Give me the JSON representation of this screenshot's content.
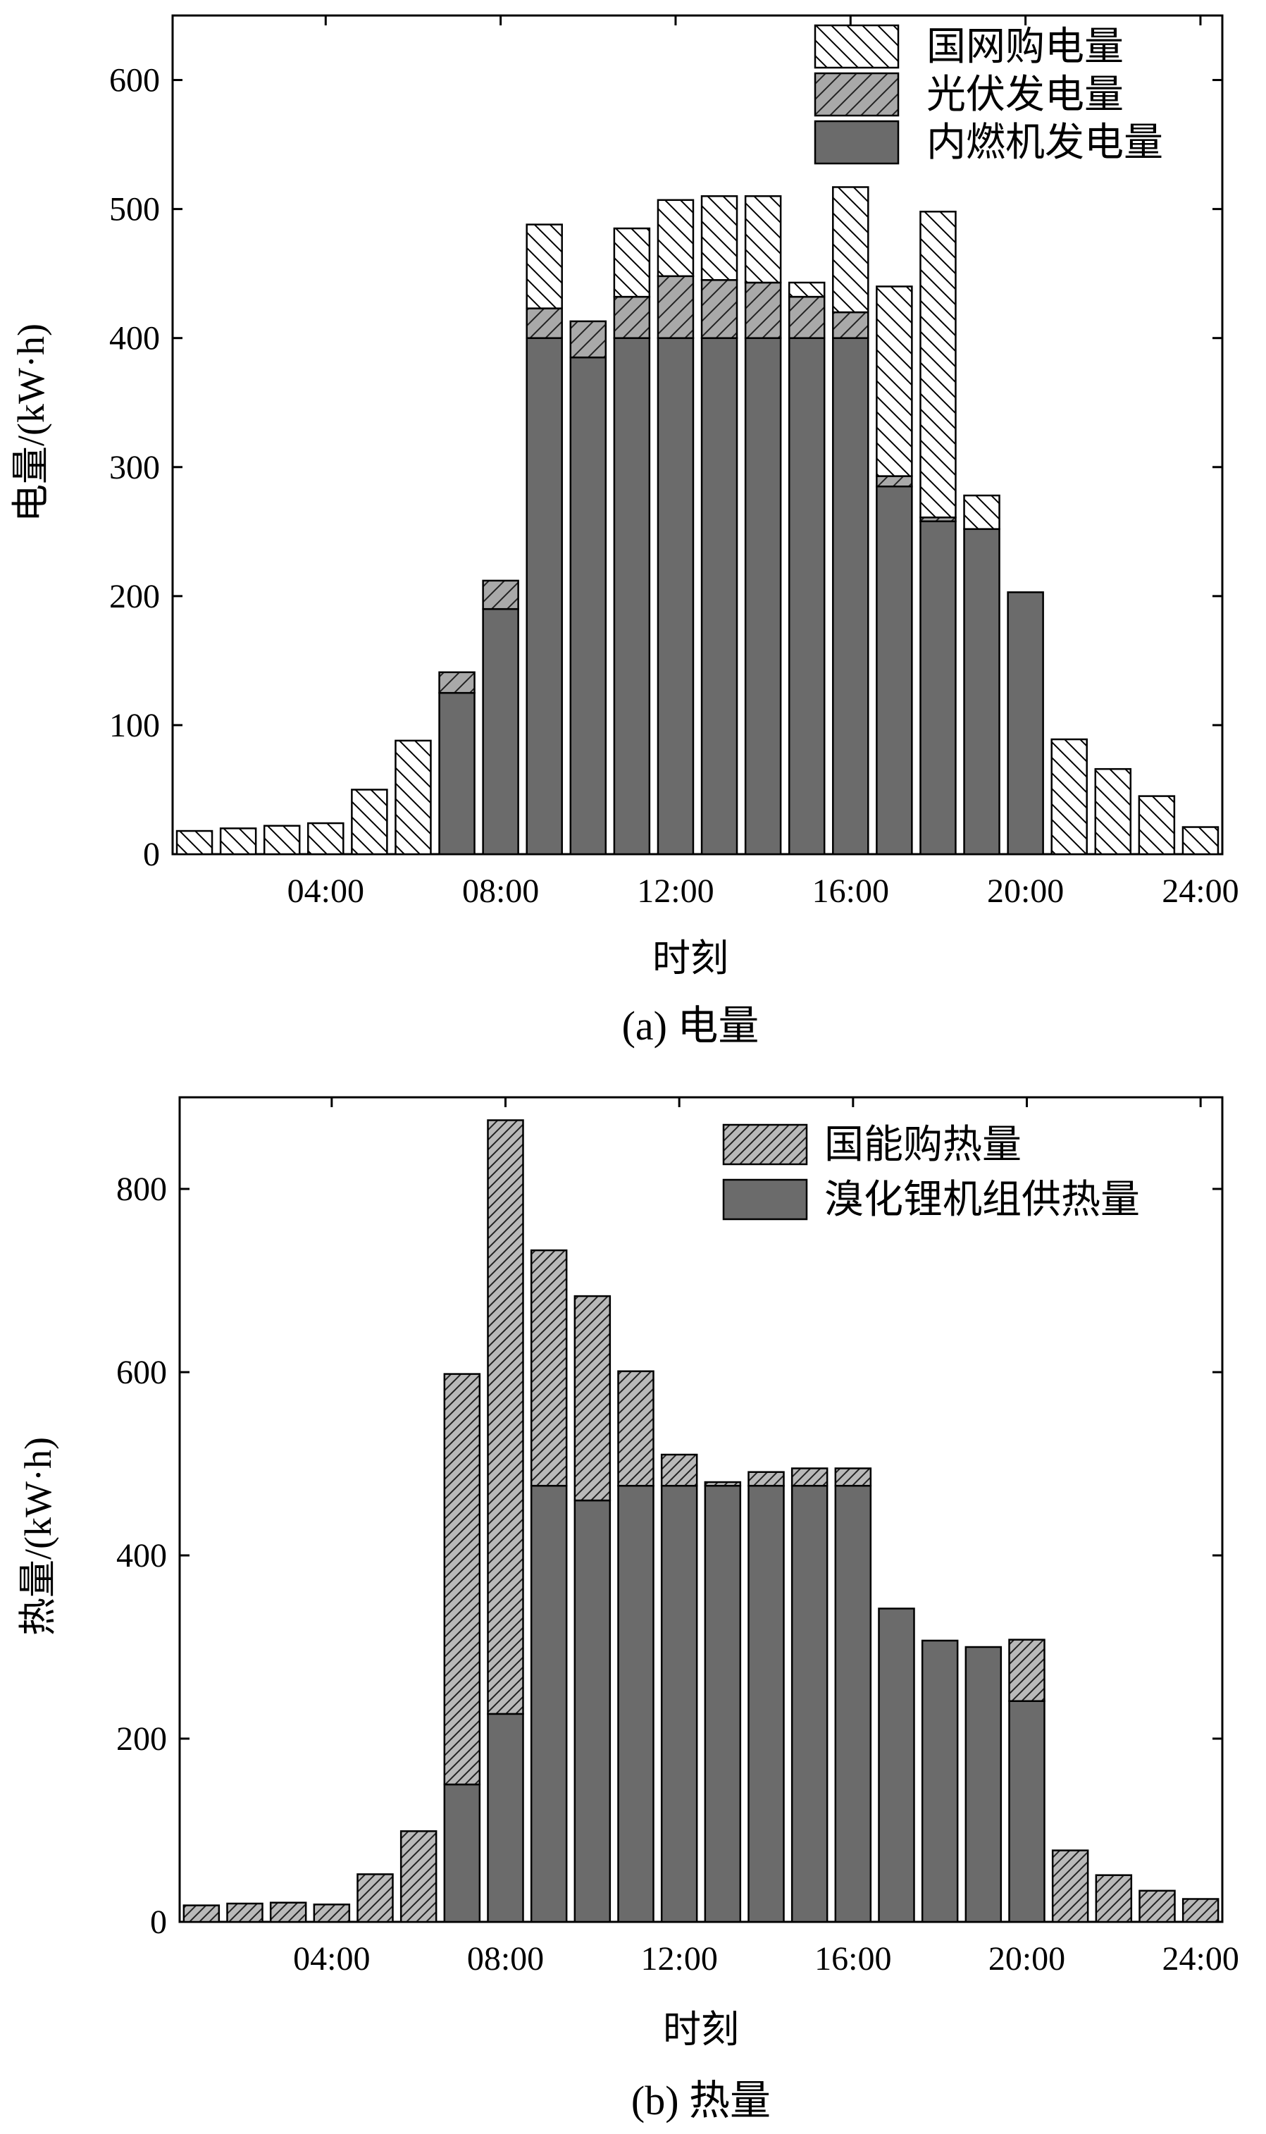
{
  "chart_data": [
    {
      "type": "bar",
      "stacked": true,
      "caption": "(a) 电量",
      "xlabel": "时刻",
      "ylabel": "电量/(kW·h)",
      "ylim": [
        0,
        650
      ],
      "yticks": [
        0,
        100,
        200,
        300,
        400,
        500,
        600
      ],
      "x": [
        1,
        2,
        3,
        4,
        5,
        6,
        7,
        8,
        9,
        10,
        11,
        12,
        13,
        14,
        15,
        16,
        17,
        18,
        19,
        20,
        21,
        22,
        23,
        24
      ],
      "xlim": [
        0.5,
        24.5
      ],
      "xticks": [
        4,
        8,
        12,
        16,
        20,
        24
      ],
      "xtick_labels": [
        "04:00",
        "08:00",
        "12:00",
        "16:00",
        "20:00",
        "24:00"
      ],
      "legend_position": "top-right",
      "series": [
        {
          "name": "内燃机发电量",
          "pattern": "solid",
          "values": [
            0,
            0,
            0,
            0,
            0,
            0,
            125,
            190,
            400,
            385,
            400,
            400,
            400,
            400,
            400,
            400,
            285,
            258,
            252,
            203,
            0,
            0,
            0,
            0
          ]
        },
        {
          "name": "光伏发电量",
          "pattern": "hatch-forward",
          "values": [
            0,
            0,
            0,
            0,
            0,
            0,
            16,
            22,
            23,
            28,
            32,
            48,
            45,
            43,
            32,
            20,
            8,
            3,
            0,
            0,
            0,
            0,
            0,
            0
          ]
        },
        {
          "name": "国网购电量",
          "pattern": "hatch-back",
          "values": [
            18,
            20,
            22,
            24,
            50,
            88,
            0,
            0,
            65,
            0,
            53,
            59,
            65,
            67,
            11,
            97,
            147,
            237,
            26,
            0,
            89,
            66,
            45,
            21
          ]
        }
      ]
    },
    {
      "type": "bar",
      "stacked": true,
      "caption": "(b) 热量",
      "xlabel": "时刻",
      "ylabel": "热量/(kW·h)",
      "ylim": [
        0,
        900
      ],
      "yticks": [
        0,
        200,
        400,
        600,
        800
      ],
      "x": [
        1,
        2,
        3,
        4,
        5,
        6,
        7,
        8,
        9,
        10,
        11,
        12,
        13,
        14,
        15,
        16,
        17,
        18,
        19,
        20,
        21,
        22,
        23,
        24
      ],
      "xlim": [
        0.5,
        24.5
      ],
      "xticks": [
        4,
        8,
        12,
        16,
        20,
        24
      ],
      "xtick_labels": [
        "04:00",
        "08:00",
        "12:00",
        "16:00",
        "20:00",
        "24:00"
      ],
      "legend_position": "top-right",
      "series": [
        {
          "name": "溴化锂机组供热量",
          "pattern": "solid",
          "values": [
            0,
            0,
            0,
            0,
            0,
            0,
            150,
            227,
            476,
            460,
            476,
            476,
            476,
            476,
            476,
            476,
            342,
            307,
            300,
            241,
            0,
            0,
            0,
            0
          ]
        },
        {
          "name": "国能购热量",
          "pattern": "hatch-forward",
          "values": [
            18,
            20,
            21,
            19,
            52,
            99,
            448,
            648,
            257,
            223,
            125,
            34,
            4,
            15,
            19,
            19,
            0,
            0,
            0,
            67,
            78,
            51,
            34,
            25
          ]
        }
      ]
    }
  ],
  "colors": {
    "solid_fill": "#6b6b6b",
    "hatch_forward_fill": "#b4b4b4",
    "hatch_back_fill": "#ffffff",
    "stroke": "#000000"
  }
}
